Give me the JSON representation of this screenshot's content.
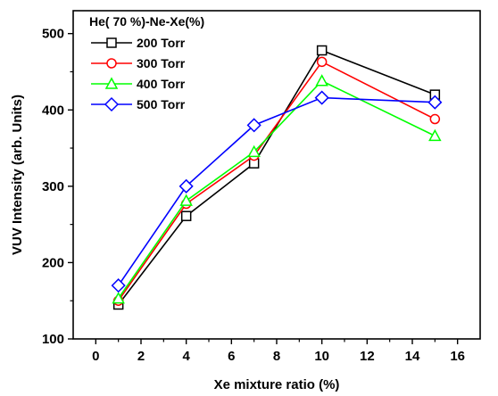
{
  "chart_data": {
    "type": "line",
    "title": "",
    "xlabel": "Xe mixture ratio (%)",
    "ylabel": "VUV Intensity (arb. Units)",
    "xlim": [
      -1,
      17
    ],
    "ylim": [
      100,
      530
    ],
    "xticks": [
      "0",
      "2",
      "4",
      "6",
      "8",
      "10",
      "12",
      "14",
      "16"
    ],
    "yticks": [
      "100",
      "200",
      "300",
      "400",
      "500"
    ],
    "legend_title": "He( 70 %)-Ne-Xe(%)",
    "legend_position": "top-left",
    "grid": false,
    "x": [
      1,
      4,
      7,
      10,
      15
    ],
    "series": [
      {
        "name": "200 Torr",
        "color": "#000000",
        "marker": "square",
        "values": [
          145,
          261,
          330,
          478,
          420
        ]
      },
      {
        "name": "300 Torr",
        "color": "#ff0000",
        "marker": "circle",
        "values": [
          150,
          277,
          340,
          463,
          388
        ]
      },
      {
        "name": "400 Torr",
        "color": "#00ff00",
        "marker": "triangle",
        "values": [
          153,
          281,
          345,
          438,
          366
        ]
      },
      {
        "name": "500 Torr",
        "color": "#0000ff",
        "marker": "diamond",
        "values": [
          170,
          300,
          380,
          416,
          410
        ]
      }
    ]
  }
}
